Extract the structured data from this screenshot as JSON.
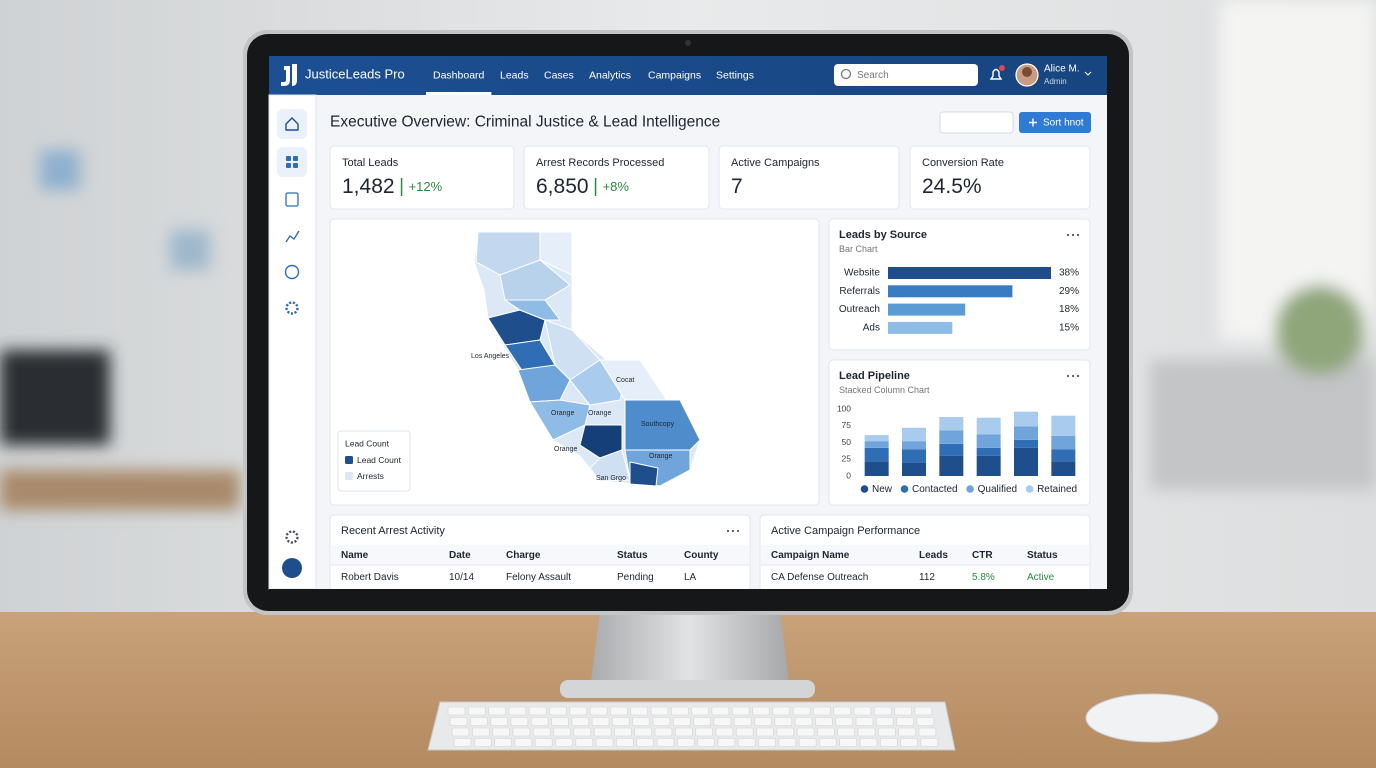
{
  "app": {
    "brand": "JusticeLeads Pro",
    "nav": [
      "Dashboard",
      "Leads",
      "Cases",
      "Analytics",
      "Campaigns",
      "Settings"
    ],
    "search_placeholder": "Search",
    "user": {
      "name": "Alice M.",
      "role": "Admin"
    }
  },
  "page": {
    "title": "Executive Overview: Criminal Justice & Lead Intelligence",
    "action": "Sort hnot"
  },
  "kpis": [
    {
      "label": "Total Leads",
      "value": "1,482",
      "delta": "+12%"
    },
    {
      "label": "Arrest Records Processed",
      "value": "6,850",
      "delta": "+8%"
    },
    {
      "label": "Active Campaigns",
      "value": "7"
    },
    {
      "label": "Conversion Rate",
      "value": "24.5%"
    }
  ],
  "map": {
    "labels": [
      "Los Angeles",
      "Cocat",
      "Orange",
      "Orange",
      "Southcopy",
      "Orange",
      "Orange",
      "San Grgo"
    ],
    "legend": {
      "title": "Lead Count",
      "items": [
        "Lead Count",
        "Arrests"
      ]
    }
  },
  "chart_data": [
    {
      "type": "hbar",
      "title": "Leads by Source",
      "subtitle": "Bar Chart",
      "categories": [
        "Website",
        "Referrals",
        "Outreach",
        "Ads"
      ],
      "values": [
        38,
        29,
        18,
        15
      ],
      "value_labels": [
        "38%",
        "29%",
        "18%",
        "15%"
      ],
      "colors": [
        "#1f4e8c",
        "#3a7cc4",
        "#5b9bd5",
        "#8fbce6"
      ]
    },
    {
      "type": "stacked-column",
      "title": "Lead Pipeline",
      "subtitle": "Stacked Column Chart",
      "categories": [
        null,
        null,
        null,
        null,
        null,
        null
      ],
      "ylim": [
        0,
        100
      ],
      "yticks": [
        0,
        25,
        50,
        75,
        100
      ],
      "series": [
        {
          "name": "New",
          "color": "#1f4e8c",
          "values": [
            22,
            20,
            30,
            30,
            42,
            22
          ]
        },
        {
          "name": "Contacted",
          "color": "#2f6db5",
          "values": [
            20,
            20,
            18,
            12,
            12,
            18
          ]
        },
        {
          "name": "Qualified",
          "color": "#6fa5db",
          "values": [
            10,
            12,
            20,
            20,
            20,
            20
          ]
        },
        {
          "name": "Retained",
          "color": "#a9cbee",
          "values": [
            9,
            20,
            20,
            25,
            22,
            30
          ]
        }
      ]
    }
  ],
  "tables": [
    {
      "title": "Recent Arrest Activity",
      "columns": [
        "Name",
        "Date",
        "Charge",
        "Status",
        "County"
      ],
      "rows": [
        [
          "Robert Davis",
          "10/14",
          "Felony Assault",
          "Pending",
          "LA"
        ]
      ]
    },
    {
      "title": "Active Campaign Performance",
      "columns": [
        "Campaign Name",
        "Leads",
        "CTR",
        "Status"
      ],
      "rows": [
        [
          "CA Defense Outreach",
          "112",
          "5.8%",
          "Active"
        ]
      ]
    }
  ]
}
